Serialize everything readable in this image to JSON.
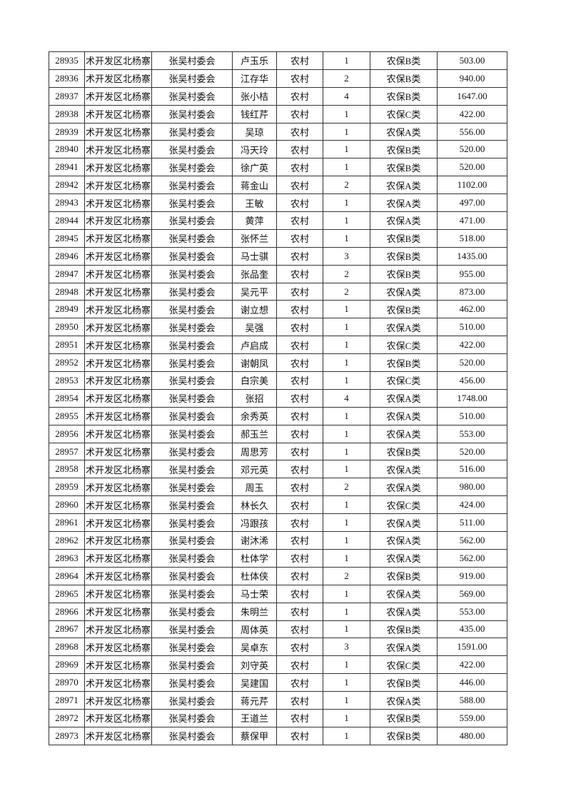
{
  "table": {
    "rows": [
      [
        "28935",
        "术开发区北杨寨",
        "张吴村委会",
        "卢玉乐",
        "农村",
        "1",
        "农保B类",
        "503.00"
      ],
      [
        "28936",
        "术开发区北杨寨",
        "张吴村委会",
        "江存华",
        "农村",
        "2",
        "农保B类",
        "940.00"
      ],
      [
        "28937",
        "术开发区北杨寨",
        "张吴村委会",
        "张小桔",
        "农村",
        "4",
        "农保B类",
        "1647.00"
      ],
      [
        "28938",
        "术开发区北杨寨",
        "张吴村委会",
        "钱红芹",
        "农村",
        "1",
        "农保C类",
        "422.00"
      ],
      [
        "28939",
        "术开发区北杨寨",
        "张吴村委会",
        "吴琼",
        "农村",
        "1",
        "农保A类",
        "556.00"
      ],
      [
        "28940",
        "术开发区北杨寨",
        "张吴村委会",
        "冯天玲",
        "农村",
        "1",
        "农保B类",
        "520.00"
      ],
      [
        "28941",
        "术开发区北杨寨",
        "张吴村委会",
        "徐广英",
        "农村",
        "1",
        "农保B类",
        "520.00"
      ],
      [
        "28942",
        "术开发区北杨寨",
        "张吴村委会",
        "蒋金山",
        "农村",
        "2",
        "农保A类",
        "1102.00"
      ],
      [
        "28943",
        "术开发区北杨寨",
        "张吴村委会",
        "王敏",
        "农村",
        "1",
        "农保A类",
        "497.00"
      ],
      [
        "28944",
        "术开发区北杨寨",
        "张吴村委会",
        "黄萍",
        "农村",
        "1",
        "农保A类",
        "471.00"
      ],
      [
        "28945",
        "术开发区北杨寨",
        "张吴村委会",
        "张怀兰",
        "农村",
        "1",
        "农保B类",
        "518.00"
      ],
      [
        "28946",
        "术开发区北杨寨",
        "张吴村委会",
        "马士骐",
        "农村",
        "3",
        "农保B类",
        "1435.00"
      ],
      [
        "28947",
        "术开发区北杨寨",
        "张吴村委会",
        "张品奎",
        "农村",
        "2",
        "农保B类",
        "955.00"
      ],
      [
        "28948",
        "术开发区北杨寨",
        "张吴村委会",
        "吴元平",
        "农村",
        "2",
        "农保A类",
        "873.00"
      ],
      [
        "28949",
        "术开发区北杨寨",
        "张吴村委会",
        "谢立想",
        "农村",
        "1",
        "农保B类",
        "462.00"
      ],
      [
        "28950",
        "术开发区北杨寨",
        "张吴村委会",
        "吴强",
        "农村",
        "1",
        "农保A类",
        "510.00"
      ],
      [
        "28951",
        "术开发区北杨寨",
        "张吴村委会",
        "卢启成",
        "农村",
        "1",
        "农保C类",
        "422.00"
      ],
      [
        "28952",
        "术开发区北杨寨",
        "张吴村委会",
        "谢朝凤",
        "农村",
        "1",
        "农保B类",
        "520.00"
      ],
      [
        "28953",
        "术开发区北杨寨",
        "张吴村委会",
        "白宗美",
        "农村",
        "1",
        "农保C类",
        "456.00"
      ],
      [
        "28954",
        "术开发区北杨寨",
        "张吴村委会",
        "张招",
        "农村",
        "4",
        "农保A类",
        "1748.00"
      ],
      [
        "28955",
        "术开发区北杨寨",
        "张吴村委会",
        "余秀英",
        "农村",
        "1",
        "农保A类",
        "510.00"
      ],
      [
        "28956",
        "术开发区北杨寨",
        "张吴村委会",
        "郝玉兰",
        "农村",
        "1",
        "农保A类",
        "553.00"
      ],
      [
        "28957",
        "术开发区北杨寨",
        "张吴村委会",
        "周思芳",
        "农村",
        "1",
        "农保B类",
        "520.00"
      ],
      [
        "28958",
        "术开发区北杨寨",
        "张吴村委会",
        "邓元英",
        "农村",
        "1",
        "农保A类",
        "516.00"
      ],
      [
        "28959",
        "术开发区北杨寨",
        "张吴村委会",
        "周玉",
        "农村",
        "2",
        "农保A类",
        "980.00"
      ],
      [
        "28960",
        "术开发区北杨寨",
        "张吴村委会",
        "林长久",
        "农村",
        "1",
        "农保C类",
        "424.00"
      ],
      [
        "28961",
        "术开发区北杨寨",
        "张吴村委会",
        "冯跟孩",
        "农村",
        "1",
        "农保A类",
        "511.00"
      ],
      [
        "28962",
        "术开发区北杨寨",
        "张吴村委会",
        "谢沐浠",
        "农村",
        "1",
        "农保A类",
        "562.00"
      ],
      [
        "28963",
        "术开发区北杨寨",
        "张吴村委会",
        "杜体学",
        "农村",
        "1",
        "农保A类",
        "562.00"
      ],
      [
        "28964",
        "术开发区北杨寨",
        "张吴村委会",
        "杜体侠",
        "农村",
        "2",
        "农保B类",
        "919.00"
      ],
      [
        "28965",
        "术开发区北杨寨",
        "张吴村委会",
        "马士荣",
        "农村",
        "1",
        "农保A类",
        "569.00"
      ],
      [
        "28966",
        "术开发区北杨寨",
        "张吴村委会",
        "朱明兰",
        "农村",
        "1",
        "农保A类",
        "553.00"
      ],
      [
        "28967",
        "术开发区北杨寨",
        "张吴村委会",
        "周体英",
        "农村",
        "1",
        "农保B类",
        "435.00"
      ],
      [
        "28968",
        "术开发区北杨寨",
        "张吴村委会",
        "吴卓东",
        "农村",
        "3",
        "农保A类",
        "1591.00"
      ],
      [
        "28969",
        "术开发区北杨寨",
        "张吴村委会",
        "刘守英",
        "农村",
        "1",
        "农保C类",
        "422.00"
      ],
      [
        "28970",
        "术开发区北杨寨",
        "张吴村委会",
        "吴建国",
        "农村",
        "1",
        "农保B类",
        "446.00"
      ],
      [
        "28971",
        "术开发区北杨寨",
        "张吴村委会",
        "蒋元芹",
        "农村",
        "1",
        "农保A类",
        "588.00"
      ],
      [
        "28972",
        "术开发区北杨寨",
        "张吴村委会",
        "王道兰",
        "农村",
        "1",
        "农保B类",
        "559.00"
      ],
      [
        "28973",
        "术开发区北杨寨",
        "张吴村委会",
        "蔡保甲",
        "农村",
        "1",
        "农保B类",
        "480.00"
      ]
    ]
  }
}
